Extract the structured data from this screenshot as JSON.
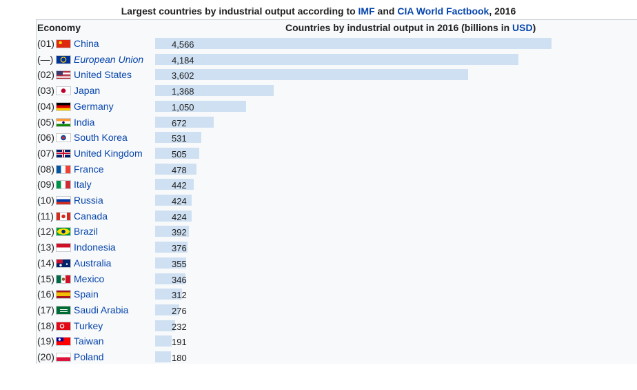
{
  "header": {
    "title_prefix": "Largest countries by industrial output according to ",
    "title_link1": "IMF",
    "title_and": " and ",
    "title_link2": "CIA World Factbook",
    "title_suffix": ", 2016",
    "col_economy": "Economy",
    "col_chart_prefix": "Countries by industrial output in 2016 (billions in ",
    "col_chart_link": "USD",
    "col_chart_suffix": ")"
  },
  "colors": {
    "bar": "#cfe0f2",
    "link": "#0645ad",
    "text": "#202122"
  },
  "chart_data": {
    "type": "bar",
    "orientation": "horizontal",
    "categories": [
      "China",
      "European Union",
      "United States",
      "Japan",
      "Germany",
      "India",
      "South Korea",
      "United Kingdom",
      "France",
      "Italy",
      "Russia",
      "Canada",
      "Brazil",
      "Indonesia",
      "Australia",
      "Mexico",
      "Spain",
      "Saudi Arabia",
      "Turkey",
      "Taiwan",
      "Poland"
    ],
    "ranks": [
      "(01)",
      "(—)",
      "(02)",
      "(03)",
      "(04)",
      "(05)",
      "(06)",
      "(07)",
      "(08)",
      "(09)",
      "(10)",
      "(11)",
      "(12)",
      "(13)",
      "(14)",
      "(15)",
      "(16)",
      "(17)",
      "(18)",
      "(19)",
      "(20)"
    ],
    "flags": [
      "china-flag",
      "eu-flag",
      "usa-flag",
      "japan-flag",
      "germany-flag",
      "india-flag",
      "south-korea-flag",
      "uk-flag",
      "france-flag",
      "italy-flag",
      "russia-flag",
      "canada-flag",
      "brazil-flag",
      "indonesia-flag",
      "australia-flag",
      "mexico-flag",
      "spain-flag",
      "saudi-arabia-flag",
      "turkey-flag",
      "taiwan-flag",
      "poland-flag"
    ],
    "values": [
      4566,
      4184,
      3602,
      1368,
      1050,
      672,
      531,
      505,
      478,
      442,
      424,
      424,
      392,
      376,
      355,
      346,
      312,
      276,
      232,
      191,
      180
    ],
    "value_labels": [
      "4,566",
      "4,184",
      "3,602",
      "1,368",
      "1,050",
      "672",
      "531",
      "505",
      "478",
      "442",
      "424",
      "424",
      "392",
      "376",
      "355",
      "346",
      "312",
      "276",
      "232",
      "191",
      "180"
    ],
    "italic_categories": [
      "European Union"
    ],
    "title": "Largest countries by industrial output according to IMF and CIA World Factbook, 2016",
    "xlabel": "Countries by industrial output in 2016 (billions in USD)",
    "ylabel": "Economy",
    "xlim": [
      0,
      4566
    ]
  }
}
